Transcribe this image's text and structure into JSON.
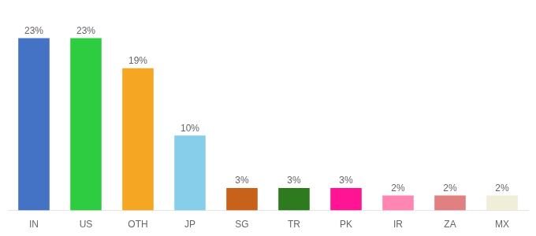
{
  "chart_data": {
    "type": "bar",
    "categories": [
      "IN",
      "US",
      "OTH",
      "JP",
      "SG",
      "TR",
      "PK",
      "IR",
      "ZA",
      "MX"
    ],
    "values": [
      23,
      23,
      19,
      10,
      3,
      3,
      3,
      2,
      2,
      2
    ],
    "value_labels": [
      "23%",
      "23%",
      "19%",
      "10%",
      "3%",
      "3%",
      "3%",
      "2%",
      "2%",
      "2%"
    ],
    "colors": [
      "#4472c4",
      "#2ecc40",
      "#f5a623",
      "#87ceeb",
      "#c8621a",
      "#2d7a1f",
      "#ff1493",
      "#ff85b3",
      "#e08080",
      "#f0edd8"
    ],
    "ylim": [
      0,
      26
    ],
    "data_labels": true,
    "tick_labels": "x",
    "grid": false
  }
}
